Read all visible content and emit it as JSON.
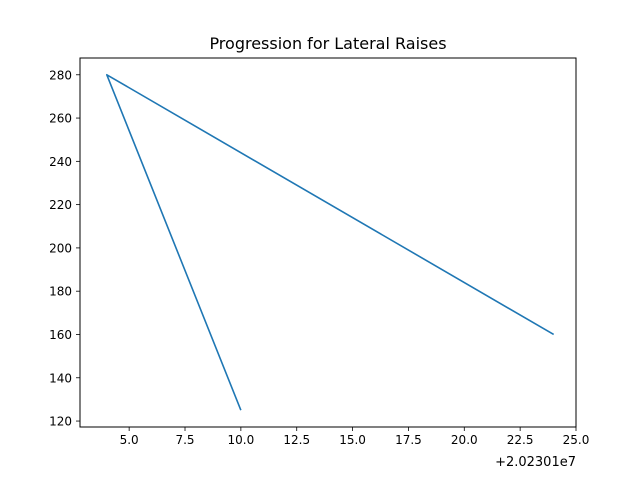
{
  "chart_data": {
    "type": "line",
    "title": "Progression for Lateral Raises",
    "xlabel": "",
    "ylabel": "",
    "x_offset_label": "+2.02301e7",
    "xlim": [
      2.8,
      25.0
    ],
    "ylim": [
      117.25,
      287.75
    ],
    "x_ticks": [
      5.0,
      7.5,
      10.0,
      12.5,
      15.0,
      17.5,
      20.0,
      22.5,
      25.0
    ],
    "x_tick_labels": [
      "5.0",
      "7.5",
      "10.0",
      "12.5",
      "15.0",
      "17.5",
      "20.0",
      "22.5",
      "25.0"
    ],
    "y_ticks": [
      120,
      140,
      160,
      180,
      200,
      220,
      240,
      260,
      280
    ],
    "y_tick_labels": [
      "120",
      "140",
      "160",
      "180",
      "200",
      "220",
      "240",
      "260",
      "280"
    ],
    "grid": false,
    "series": [
      {
        "color": "#1f77b4",
        "x": [
          24,
          4,
          10
        ],
        "values": [
          160,
          280,
          125
        ]
      }
    ]
  }
}
